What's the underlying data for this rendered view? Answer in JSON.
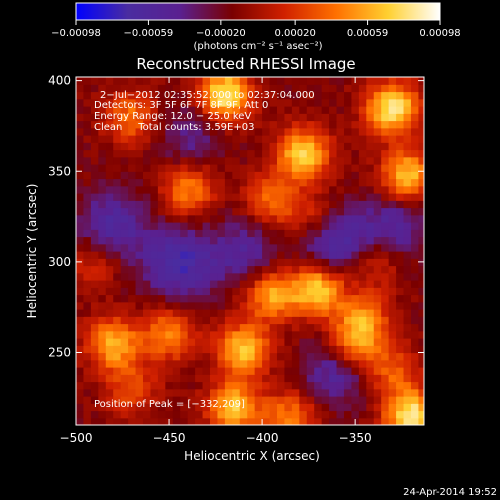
{
  "chart_data": {
    "type": "heatmap",
    "title": "Reconstructed RHESSI Image",
    "xlabel": "Heliocentric X (arcsec)",
    "ylabel": "Heliocentric Y (arcsec)",
    "xlim": [
      -500,
      -313
    ],
    "ylim": [
      210,
      402
    ],
    "x_ticks": [
      -500,
      -450,
      -400,
      -350
    ],
    "x_tick_labels": [
      "−500",
      "−450",
      "−400",
      "−350"
    ],
    "y_ticks": [
      250,
      300,
      350,
      400
    ],
    "y_tick_labels": [
      "250",
      "300",
      "350",
      "400"
    ],
    "colorbar": {
      "min": -0.00098,
      "max": 0.00098,
      "ticks": [
        -0.00098,
        -0.00059,
        -0.0002,
        0.0002,
        0.00059,
        0.00098
      ],
      "tick_labels": [
        "−0.00098",
        "−0.00059",
        "−0.00020",
        "0.00020",
        "0.00059",
        "0.00098"
      ],
      "label": "(photons cm⁻² s⁻¹ asec⁻²)",
      "colors": [
        "#0000ff",
        "#4a2ca0",
        "#5a2090",
        "#7a0000",
        "#d02000",
        "#ff7000",
        "#ffd030",
        "#ffffff"
      ]
    },
    "annotations": [
      "2−Jul−2012 02:35:52.000 to 02:37:04.000",
      "Detectors: 3F 5F 6F 7F 8F 9F, Att 0",
      "Energy Range: 12.0 − 25.0 keV",
      "Clean     Total counts: 3.59E+03"
    ],
    "peak": {
      "x": -332,
      "y": 209,
      "label": "Position of Peak = [−332,209]"
    },
    "hotspots": [
      {
        "x": -420,
        "y": 392,
        "value": 0.00098
      },
      {
        "x": -330,
        "y": 385,
        "value": 0.00098
      },
      {
        "x": -378,
        "y": 360,
        "value": 0.00085
      },
      {
        "x": -322,
        "y": 348,
        "value": 0.0008
      },
      {
        "x": -470,
        "y": 380,
        "value": 0.00055
      },
      {
        "x": -440,
        "y": 340,
        "value": 0.0006
      },
      {
        "x": -395,
        "y": 335,
        "value": 0.0005
      },
      {
        "x": -375,
        "y": 325,
        "value": 0.0003
      },
      {
        "x": -370,
        "y": 285,
        "value": 0.0009
      },
      {
        "x": -395,
        "y": 282,
        "value": 0.0007
      },
      {
        "x": -345,
        "y": 270,
        "value": 0.0005
      },
      {
        "x": -350,
        "y": 255,
        "value": 0.0007
      },
      {
        "x": -410,
        "y": 252,
        "value": 0.0008
      },
      {
        "x": -480,
        "y": 255,
        "value": 0.00075
      },
      {
        "x": -450,
        "y": 260,
        "value": 0.0006
      },
      {
        "x": -415,
        "y": 220,
        "value": 0.0008
      },
      {
        "x": -385,
        "y": 215,
        "value": 0.00055
      },
      {
        "x": -320,
        "y": 215,
        "value": 0.00098
      },
      {
        "x": -330,
        "y": 240,
        "value": 0.00045
      },
      {
        "x": -470,
        "y": 230,
        "value": 0.0004
      },
      {
        "x": -490,
        "y": 300,
        "value": 0.0003
      },
      {
        "x": -340,
        "y": 300,
        "value": 0.00035
      }
    ],
    "coldspots": [
      {
        "x": -445,
        "y": 300,
        "value": -0.0006
      },
      {
        "x": -480,
        "y": 320,
        "value": -0.0005
      },
      {
        "x": -360,
        "y": 310,
        "value": -0.00055
      },
      {
        "x": -330,
        "y": 320,
        "value": -0.0004
      },
      {
        "x": -410,
        "y": 305,
        "value": -0.0004
      },
      {
        "x": -360,
        "y": 240,
        "value": -0.00045
      },
      {
        "x": -440,
        "y": 370,
        "value": -0.0003
      }
    ]
  },
  "footer": {
    "timestamp": "24-Apr-2014 19:52"
  }
}
